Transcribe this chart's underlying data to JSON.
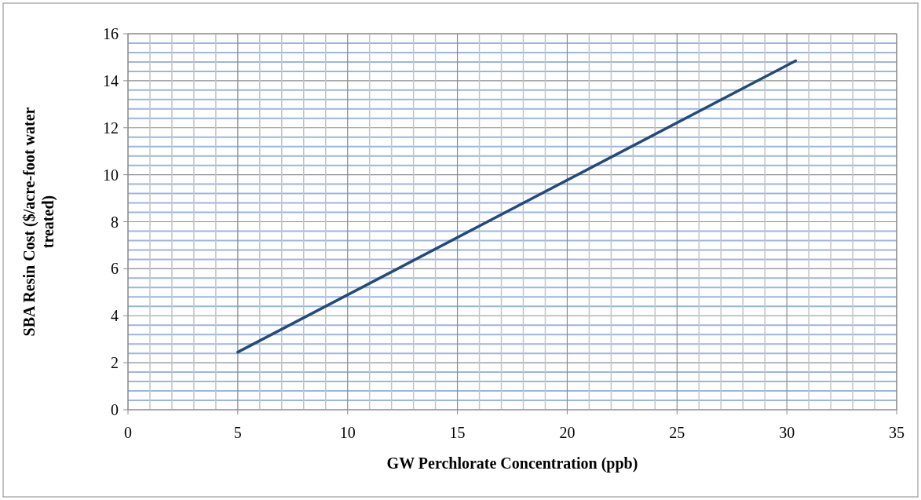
{
  "chart_data": {
    "type": "line",
    "xlabel": "GW Perchlorate Concentration (ppb)",
    "ylabel": "SBA Resin Cost ($/acre-foot water treated)",
    "series": [
      {
        "color": "#244a7c",
        "x": [
          5,
          30.4
        ],
        "values": [
          2.45,
          14.85
        ]
      }
    ],
    "xlim": [
      0,
      35
    ],
    "ylim": [
      0,
      16
    ],
    "xticks": [
      0,
      {
        "value": 1,
        "label": null
      },
      {
        "value": 2,
        "label": null
      },
      {
        "value": 3,
        "label": null
      },
      {
        "value": 4,
        "label": null
      },
      5,
      {
        "value": 6,
        "label": null
      },
      {
        "value": 7,
        "label": null
      },
      {
        "value": 8,
        "label": null
      },
      {
        "value": 9,
        "label": null
      },
      10,
      {
        "value": 11,
        "label": null
      },
      {
        "value": 12,
        "label": null
      },
      {
        "value": 13,
        "label": null
      },
      {
        "value": 14,
        "label": null
      },
      15,
      {
        "value": 16,
        "label": null
      },
      {
        "value": 17,
        "label": null
      },
      {
        "value": 18,
        "label": null
      },
      {
        "value": 19,
        "label": null
      },
      20,
      {
        "value": 21,
        "label": null
      },
      {
        "value": 22,
        "label": null
      },
      {
        "value": 23,
        "label": null
      },
      {
        "value": 24,
        "label": null
      },
      25,
      {
        "value": 26,
        "label": null
      },
      {
        "value": 27,
        "label": null
      },
      {
        "value": 28,
        "label": null
      },
      {
        "value": 29,
        "label": null
      },
      30,
      {
        "value": 31,
        "label": null
      },
      {
        "value": 32,
        "label": null
      },
      {
        "value": 33,
        "label": null
      },
      {
        "value": 34,
        "label": null
      },
      35
    ],
    "yticks": [
      0,
      {
        "value": 0.4,
        "label": null
      },
      {
        "value": 0.8,
        "label": null
      },
      {
        "value": 1.2,
        "label": null
      },
      {
        "value": 1.6,
        "label": null
      },
      2,
      {
        "value": 2.4,
        "label": null
      },
      {
        "value": 2.8,
        "label": null
      },
      {
        "value": 3.2,
        "label": null
      },
      {
        "value": 3.6,
        "label": null
      },
      4,
      {
        "value": 4.4,
        "label": null
      },
      {
        "value": 4.8,
        "label": null
      },
      {
        "value": 5.2,
        "label": null
      },
      {
        "value": 5.6,
        "label": null
      },
      6,
      {
        "value": 6.4,
        "label": null
      },
      {
        "value": 6.8,
        "label": null
      },
      {
        "value": 7.2,
        "label": null
      },
      {
        "value": 7.6,
        "label": null
      },
      8,
      {
        "value": 8.4,
        "label": null
      },
      {
        "value": 8.8,
        "label": null
      },
      {
        "value": 9.2,
        "label": null
      },
      {
        "value": 9.6,
        "label": null
      },
      10,
      {
        "value": 10.4,
        "label": null
      },
      {
        "value": 10.8,
        "label": null
      },
      {
        "value": 11.2,
        "label": null
      },
      {
        "value": 11.6,
        "label": null
      },
      12,
      {
        "value": 12.4,
        "label": null
      },
      {
        "value": 12.8,
        "label": null
      },
      {
        "value": 13.2,
        "label": null
      },
      {
        "value": 13.6,
        "label": null
      },
      14,
      {
        "value": 14.4,
        "label": null
      },
      {
        "value": 14.8,
        "label": null
      },
      {
        "value": 15.2,
        "label": null
      },
      {
        "value": 15.6,
        "label": null
      },
      16
    ],
    "grid": true,
    "marker": "none",
    "line_style": "solid"
  }
}
